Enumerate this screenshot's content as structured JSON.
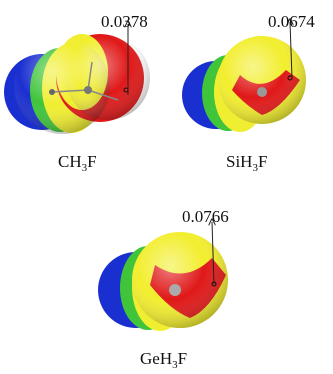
{
  "panels": [
    {
      "formula": {
        "base": "CH",
        "sub": "3",
        "tail": "F"
      },
      "value": "0.0378"
    },
    {
      "formula": {
        "base": "SiH",
        "sub": "3",
        "tail": "F"
      },
      "value": "0.0674"
    },
    {
      "formula": {
        "base": "GeH",
        "sub": "3",
        "tail": "F"
      },
      "value": "0.0766"
    }
  ]
}
